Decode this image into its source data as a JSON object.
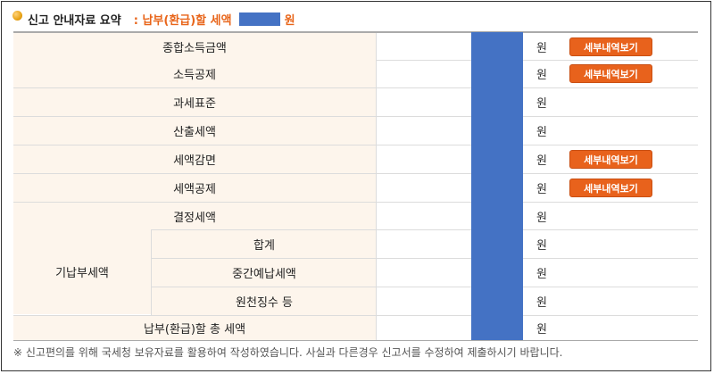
{
  "header": {
    "title": "신고 안내자료 요약",
    "subtitle": ": 납부(환급)할 세액",
    "subtitle_unit": "원"
  },
  "rows": [
    {
      "label": "종합소득금액",
      "unit": "원",
      "button": "세부내역보기"
    },
    {
      "label": "소득공제",
      "unit": "원",
      "button": "세부내역보기"
    },
    {
      "label": "과세표준",
      "unit": "원"
    },
    {
      "label": "산출세액",
      "unit": "원"
    },
    {
      "label": "세액감면",
      "unit": "원",
      "button": "세부내역보기"
    },
    {
      "label": "세액공제",
      "unit": "원",
      "button": "세부내역보기"
    },
    {
      "label": "결정세액",
      "unit": "원"
    }
  ],
  "prepaid": {
    "group_label": "기납부세액",
    "rows": [
      {
        "label": "합계",
        "unit": "원"
      },
      {
        "label": "중간예납세액",
        "unit": "원"
      },
      {
        "label": "원천징수 등",
        "unit": "원"
      }
    ]
  },
  "total": {
    "label": "납부(환급)할 총 세액",
    "unit": "원"
  },
  "note": "※ 신고편의를 위해 국세청 보유자료를 활용하여 작성하였습니다. 사실과 다른경우 신고서를 수정하여 제출하시기 바랍니다.",
  "colors": {
    "accent": "#e8621c",
    "masked": "#4472c4",
    "label_bg": "#fdf5ec"
  }
}
